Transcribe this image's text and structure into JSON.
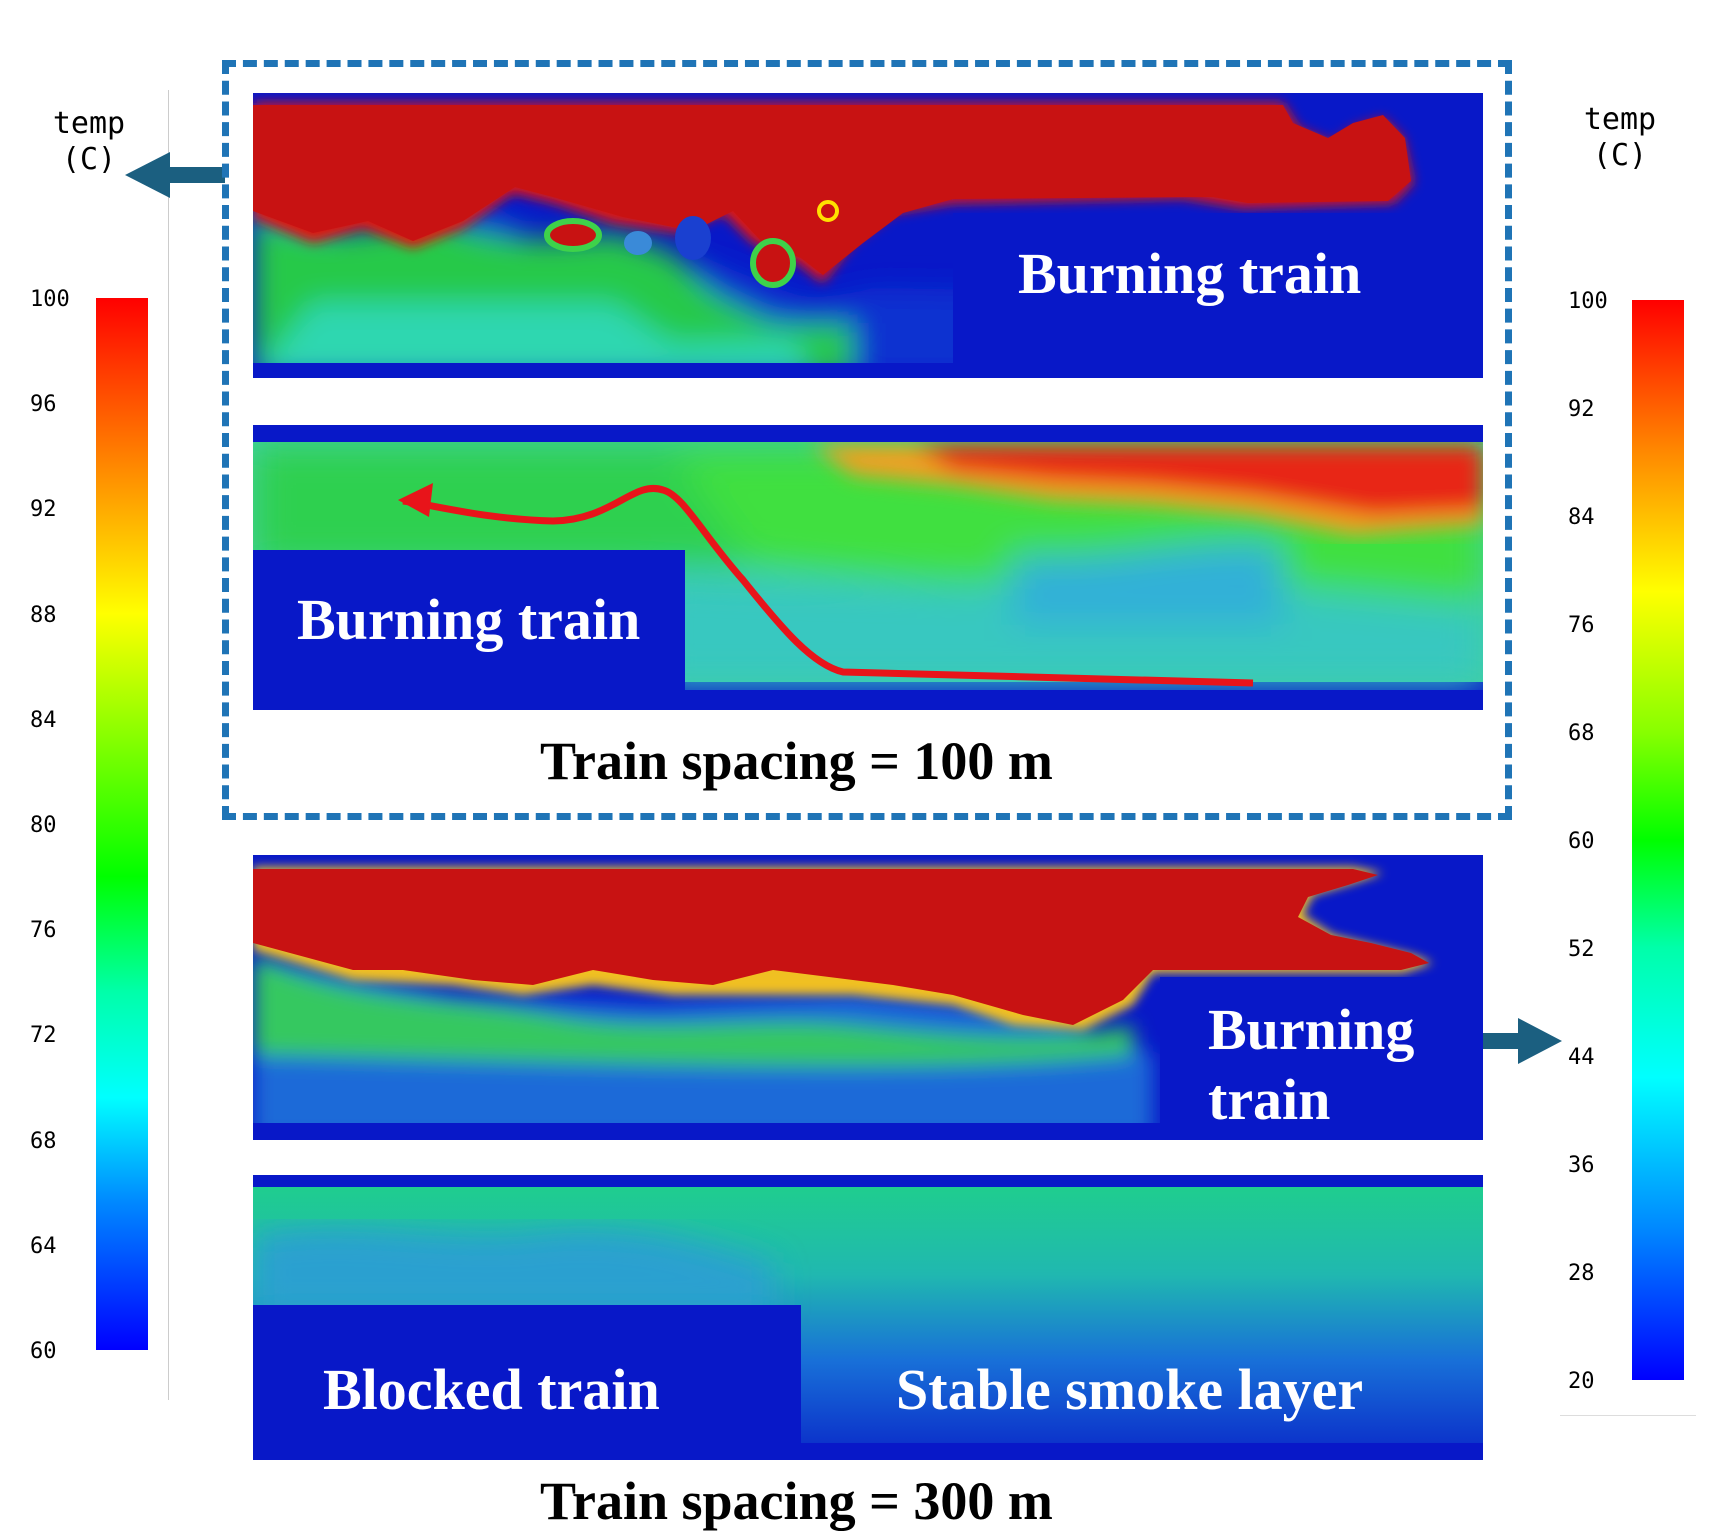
{
  "colorbar_left": {
    "title_line1": "temp",
    "title_line2": "(C)",
    "ticks": [
      "100",
      "96",
      "92",
      "88",
      "84",
      "80",
      "76",
      "72",
      "68",
      "64",
      "60"
    ]
  },
  "colorbar_right": {
    "title_line1": "temp",
    "title_line2": "(C)",
    "ticks": [
      "100",
      "92",
      "84",
      "76",
      "68",
      "60",
      "52",
      "44",
      "36",
      "28",
      "20"
    ]
  },
  "panels": {
    "p1_label": "Burning train",
    "p2_label": "Burning train",
    "p3_label_line1": "Burning",
    "p3_label_line2": "train",
    "p4_label_left": "Blocked train",
    "p4_label_right": "Stable smoke layer"
  },
  "captions": {
    "top": "Train spacing = 100 m",
    "bottom": "Train spacing = 300 m"
  },
  "colors": {
    "hot": "#c81212",
    "cold": "#0818c8",
    "accent_blue": "#1f74b6",
    "arrow_teal": "#1b5f80",
    "flow_path": "#e8141a"
  }
}
